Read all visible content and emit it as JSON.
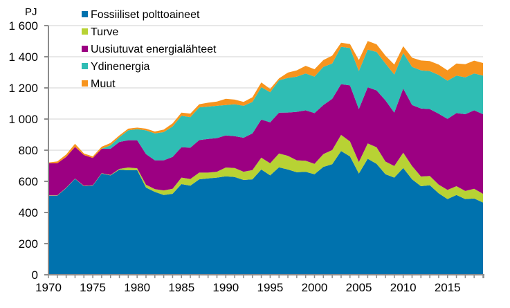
{
  "chart_data": {
    "type": "area",
    "stacked": true,
    "title": "",
    "xlabel": "",
    "ylabel": "PJ",
    "xlim": [
      1970,
      2019
    ],
    "ylim": [
      0,
      1600
    ],
    "yticks": [
      0,
      200,
      400,
      600,
      800,
      1000,
      1200,
      1400,
      1600
    ],
    "ytick_labels": [
      "0",
      "200",
      "400",
      "600",
      "800",
      "1 000",
      "1 200",
      "1 400",
      "1 600"
    ],
    "xticks": [
      1970,
      1975,
      1980,
      1985,
      1990,
      1995,
      2000,
      2005,
      2010,
      2015
    ],
    "xtick_labels": [
      "1970",
      "1975",
      "1980",
      "1985",
      "1990",
      "1995",
      "2000",
      "2005",
      "2010",
      "2015"
    ],
    "grid": "horizontal",
    "legend_position": "top-left",
    "x": [
      1970,
      1971,
      1972,
      1973,
      1974,
      1975,
      1976,
      1977,
      1978,
      1979,
      1980,
      1981,
      1982,
      1983,
      1984,
      1985,
      1986,
      1987,
      1988,
      1989,
      1990,
      1991,
      1992,
      1993,
      1994,
      1995,
      1996,
      1997,
      1998,
      1999,
      2000,
      2001,
      2002,
      2003,
      2004,
      2005,
      2006,
      2007,
      2008,
      2009,
      2010,
      2011,
      2012,
      2013,
      2014,
      2015,
      2016,
      2017,
      2018,
      2019
    ],
    "series": [
      {
        "name": "Fossiiliset polttoaineet",
        "color": "#0072ae",
        "values": [
          508,
          508,
          557,
          616,
          569,
          573,
          650,
          638,
          675,
          671,
          672,
          560,
          532,
          512,
          520,
          582,
          572,
          613,
          619,
          624,
          632,
          628,
          609,
          613,
          676,
          638,
          690,
          676,
          658,
          661,
          646,
          693,
          710,
          794,
          760,
          650,
          745,
          712,
          646,
          624,
          686,
          613,
          569,
          575,
          523,
          486,
          512,
          486,
          490,
          464
        ]
      },
      {
        "name": "Turve",
        "color": "#b8d234",
        "values": [
          2,
          2,
          2,
          2,
          2,
          2,
          2,
          3,
          5,
          18,
          12,
          18,
          18,
          30,
          32,
          42,
          43,
          43,
          37,
          38,
          57,
          58,
          53,
          59,
          76,
          78,
          89,
          88,
          77,
          71,
          66,
          82,
          91,
          104,
          96,
          74,
          98,
          107,
          81,
          74,
          98,
          85,
          62,
          59,
          56,
          59,
          57,
          52,
          62,
          56
        ]
      },
      {
        "name": "Uusiutuvat energialähteet",
        "color": "#9c0082",
        "values": [
          206,
          206,
          198,
          203,
          198,
          175,
          157,
          168,
          173,
          175,
          180,
          197,
          185,
          193,
          205,
          195,
          201,
          209,
          216,
          216,
          206,
          204,
          218,
          236,
          245,
          263,
          262,
          278,
          311,
          324,
          326,
          315,
          329,
          326,
          360,
          340,
          361,
          365,
          393,
          343,
          412,
          392,
          437,
          430,
          455,
          456,
          469,
          493,
          504,
          511
        ]
      },
      {
        "name": "Ydinenergia",
        "color": "#2fbdb4",
        "values": [
          0,
          0,
          0,
          0,
          0,
          0,
          0,
          22,
          30,
          63,
          71,
          152,
          173,
          181,
          195,
          202,
          196,
          210,
          208,
          207,
          195,
          205,
          205,
          202,
          208,
          193,
          208,
          222,
          226,
          237,
          234,
          245,
          227,
          240,
          240,
          244,
          242,
          247,
          237,
          245,
          228,
          245,
          245,
          244,
          249,
          245,
          241,
          237,
          237,
          248
        ]
      },
      {
        "name": "Muut",
        "color": "#f7941d",
        "values": [
          5,
          12,
          15,
          20,
          10,
          10,
          13,
          15,
          12,
          11,
          10,
          11,
          12,
          16,
          20,
          20,
          23,
          20,
          25,
          27,
          40,
          30,
          25,
          30,
          30,
          22,
          12,
          34,
          41,
          49,
          48,
          44,
          50,
          26,
          26,
          71,
          55,
          49,
          50,
          64,
          44,
          59,
          63,
          64,
          67,
          67,
          78,
          84,
          82,
          81
        ]
      }
    ]
  }
}
